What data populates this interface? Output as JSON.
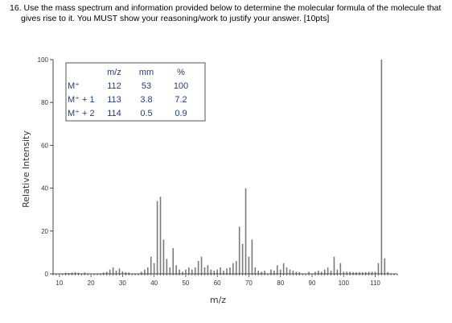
{
  "question": {
    "line1": "16. Use the mass spectrum and information provided below to determine the molecular formula of the molecule that",
    "line2": "gives rise to it.  You MUST show your reasoning/work to justify your answer. [10pts]"
  },
  "chart_data": {
    "type": "bar",
    "xlabel": "m/z",
    "ylabel": "Relative Intensity",
    "xlim": [
      8,
      117
    ],
    "ylim": [
      0,
      100
    ],
    "x_ticks": [
      "10",
      "20",
      "30",
      "40",
      "50",
      "60",
      "70",
      "80",
      "90",
      "100",
      "110"
    ],
    "y_ticks": [
      "0",
      "20",
      "40",
      "60",
      "80",
      "100"
    ],
    "peaks": [
      {
        "mz": 12,
        "intensity": 0.5
      },
      {
        "mz": 13,
        "intensity": 0.4
      },
      {
        "mz": 14,
        "intensity": 0.6
      },
      {
        "mz": 15,
        "intensity": 0.8
      },
      {
        "mz": 16,
        "intensity": 0.5
      },
      {
        "mz": 18,
        "intensity": 0.6
      },
      {
        "mz": 24,
        "intensity": 0.6
      },
      {
        "mz": 25,
        "intensity": 1.0
      },
      {
        "mz": 26,
        "intensity": 2.0
      },
      {
        "mz": 27,
        "intensity": 3.0
      },
      {
        "mz": 28,
        "intensity": 1.5
      },
      {
        "mz": 29,
        "intensity": 2.5
      },
      {
        "mz": 30,
        "intensity": 1.2
      },
      {
        "mz": 31,
        "intensity": 0.8
      },
      {
        "mz": 32,
        "intensity": 0.6
      },
      {
        "mz": 36,
        "intensity": 1.0
      },
      {
        "mz": 37,
        "intensity": 2.0
      },
      {
        "mz": 38,
        "intensity": 3.0
      },
      {
        "mz": 39,
        "intensity": 8.0
      },
      {
        "mz": 40,
        "intensity": 5.0
      },
      {
        "mz": 41,
        "intensity": 34.0
      },
      {
        "mz": 42,
        "intensity": 36.0
      },
      {
        "mz": 43,
        "intensity": 16.0
      },
      {
        "mz": 44,
        "intensity": 7.0
      },
      {
        "mz": 45,
        "intensity": 3.0
      },
      {
        "mz": 46,
        "intensity": 12.0
      },
      {
        "mz": 47,
        "intensity": 4.0
      },
      {
        "mz": 48,
        "intensity": 2.0
      },
      {
        "mz": 49,
        "intensity": 1.0
      },
      {
        "mz": 50,
        "intensity": 2.0
      },
      {
        "mz": 51,
        "intensity": 3.0
      },
      {
        "mz": 52,
        "intensity": 2.0
      },
      {
        "mz": 53,
        "intensity": 3.0
      },
      {
        "mz": 54,
        "intensity": 6.0
      },
      {
        "mz": 55,
        "intensity": 8.0
      },
      {
        "mz": 56,
        "intensity": 3.0
      },
      {
        "mz": 57,
        "intensity": 4.0
      },
      {
        "mz": 58,
        "intensity": 2.0
      },
      {
        "mz": 59,
        "intensity": 1.5
      },
      {
        "mz": 60,
        "intensity": 2.0
      },
      {
        "mz": 61,
        "intensity": 3.0
      },
      {
        "mz": 62,
        "intensity": 1.5
      },
      {
        "mz": 63,
        "intensity": 2.5
      },
      {
        "mz": 64,
        "intensity": 3.0
      },
      {
        "mz": 65,
        "intensity": 5.0
      },
      {
        "mz": 66,
        "intensity": 6.0
      },
      {
        "mz": 67,
        "intensity": 22.0
      },
      {
        "mz": 68,
        "intensity": 14.0
      },
      {
        "mz": 69,
        "intensity": 40.0
      },
      {
        "mz": 70,
        "intensity": 8.0
      },
      {
        "mz": 71,
        "intensity": 16.0
      },
      {
        "mz": 72,
        "intensity": 3.0
      },
      {
        "mz": 73,
        "intensity": 1.5
      },
      {
        "mz": 74,
        "intensity": 1.0
      },
      {
        "mz": 75,
        "intensity": 1.5
      },
      {
        "mz": 77,
        "intensity": 2.0
      },
      {
        "mz": 78,
        "intensity": 1.5
      },
      {
        "mz": 79,
        "intensity": 4.0
      },
      {
        "mz": 80,
        "intensity": 2.0
      },
      {
        "mz": 81,
        "intensity": 5.0
      },
      {
        "mz": 82,
        "intensity": 3.0
      },
      {
        "mz": 83,
        "intensity": 2.0
      },
      {
        "mz": 84,
        "intensity": 1.5
      },
      {
        "mz": 85,
        "intensity": 1.0
      },
      {
        "mz": 86,
        "intensity": 0.8
      },
      {
        "mz": 89,
        "intensity": 1.0
      },
      {
        "mz": 91,
        "intensity": 1.0
      },
      {
        "mz": 92,
        "intensity": 1.5
      },
      {
        "mz": 93,
        "intensity": 1.0
      },
      {
        "mz": 94,
        "intensity": 2.0
      },
      {
        "mz": 95,
        "intensity": 3.0
      },
      {
        "mz": 96,
        "intensity": 1.5
      },
      {
        "mz": 97,
        "intensity": 8.0
      },
      {
        "mz": 98,
        "intensity": 2.0
      },
      {
        "mz": 99,
        "intensity": 5.0
      },
      {
        "mz": 100,
        "intensity": 1.0
      },
      {
        "mz": 101,
        "intensity": 1.0
      },
      {
        "mz": 102,
        "intensity": 1.0
      },
      {
        "mz": 103,
        "intensity": 0.8
      },
      {
        "mz": 104,
        "intensity": 0.8
      },
      {
        "mz": 105,
        "intensity": 0.8
      },
      {
        "mz": 106,
        "intensity": 0.8
      },
      {
        "mz": 107,
        "intensity": 0.8
      },
      {
        "mz": 108,
        "intensity": 1.0
      },
      {
        "mz": 109,
        "intensity": 1.0
      },
      {
        "mz": 110,
        "intensity": 1.0
      },
      {
        "mz": 111,
        "intensity": 5.0
      },
      {
        "mz": 112,
        "intensity": 100.0
      },
      {
        "mz": 113,
        "intensity": 7.2
      },
      {
        "mz": 114,
        "intensity": 0.9
      }
    ],
    "inset_table": {
      "headers": [
        "",
        "m/z",
        "mm",
        "%"
      ],
      "rows": [
        [
          "M⁺",
          "112",
          "53",
          "100"
        ],
        [
          "M⁺ + 1",
          "113",
          "3.8",
          "7.2"
        ],
        [
          "M⁺ + 2",
          "114",
          "0.5",
          "0.9"
        ]
      ]
    },
    "colors": {
      "peaks": "#7a7a7a",
      "axes": "#444444",
      "table_text": "#1f3a93"
    }
  }
}
